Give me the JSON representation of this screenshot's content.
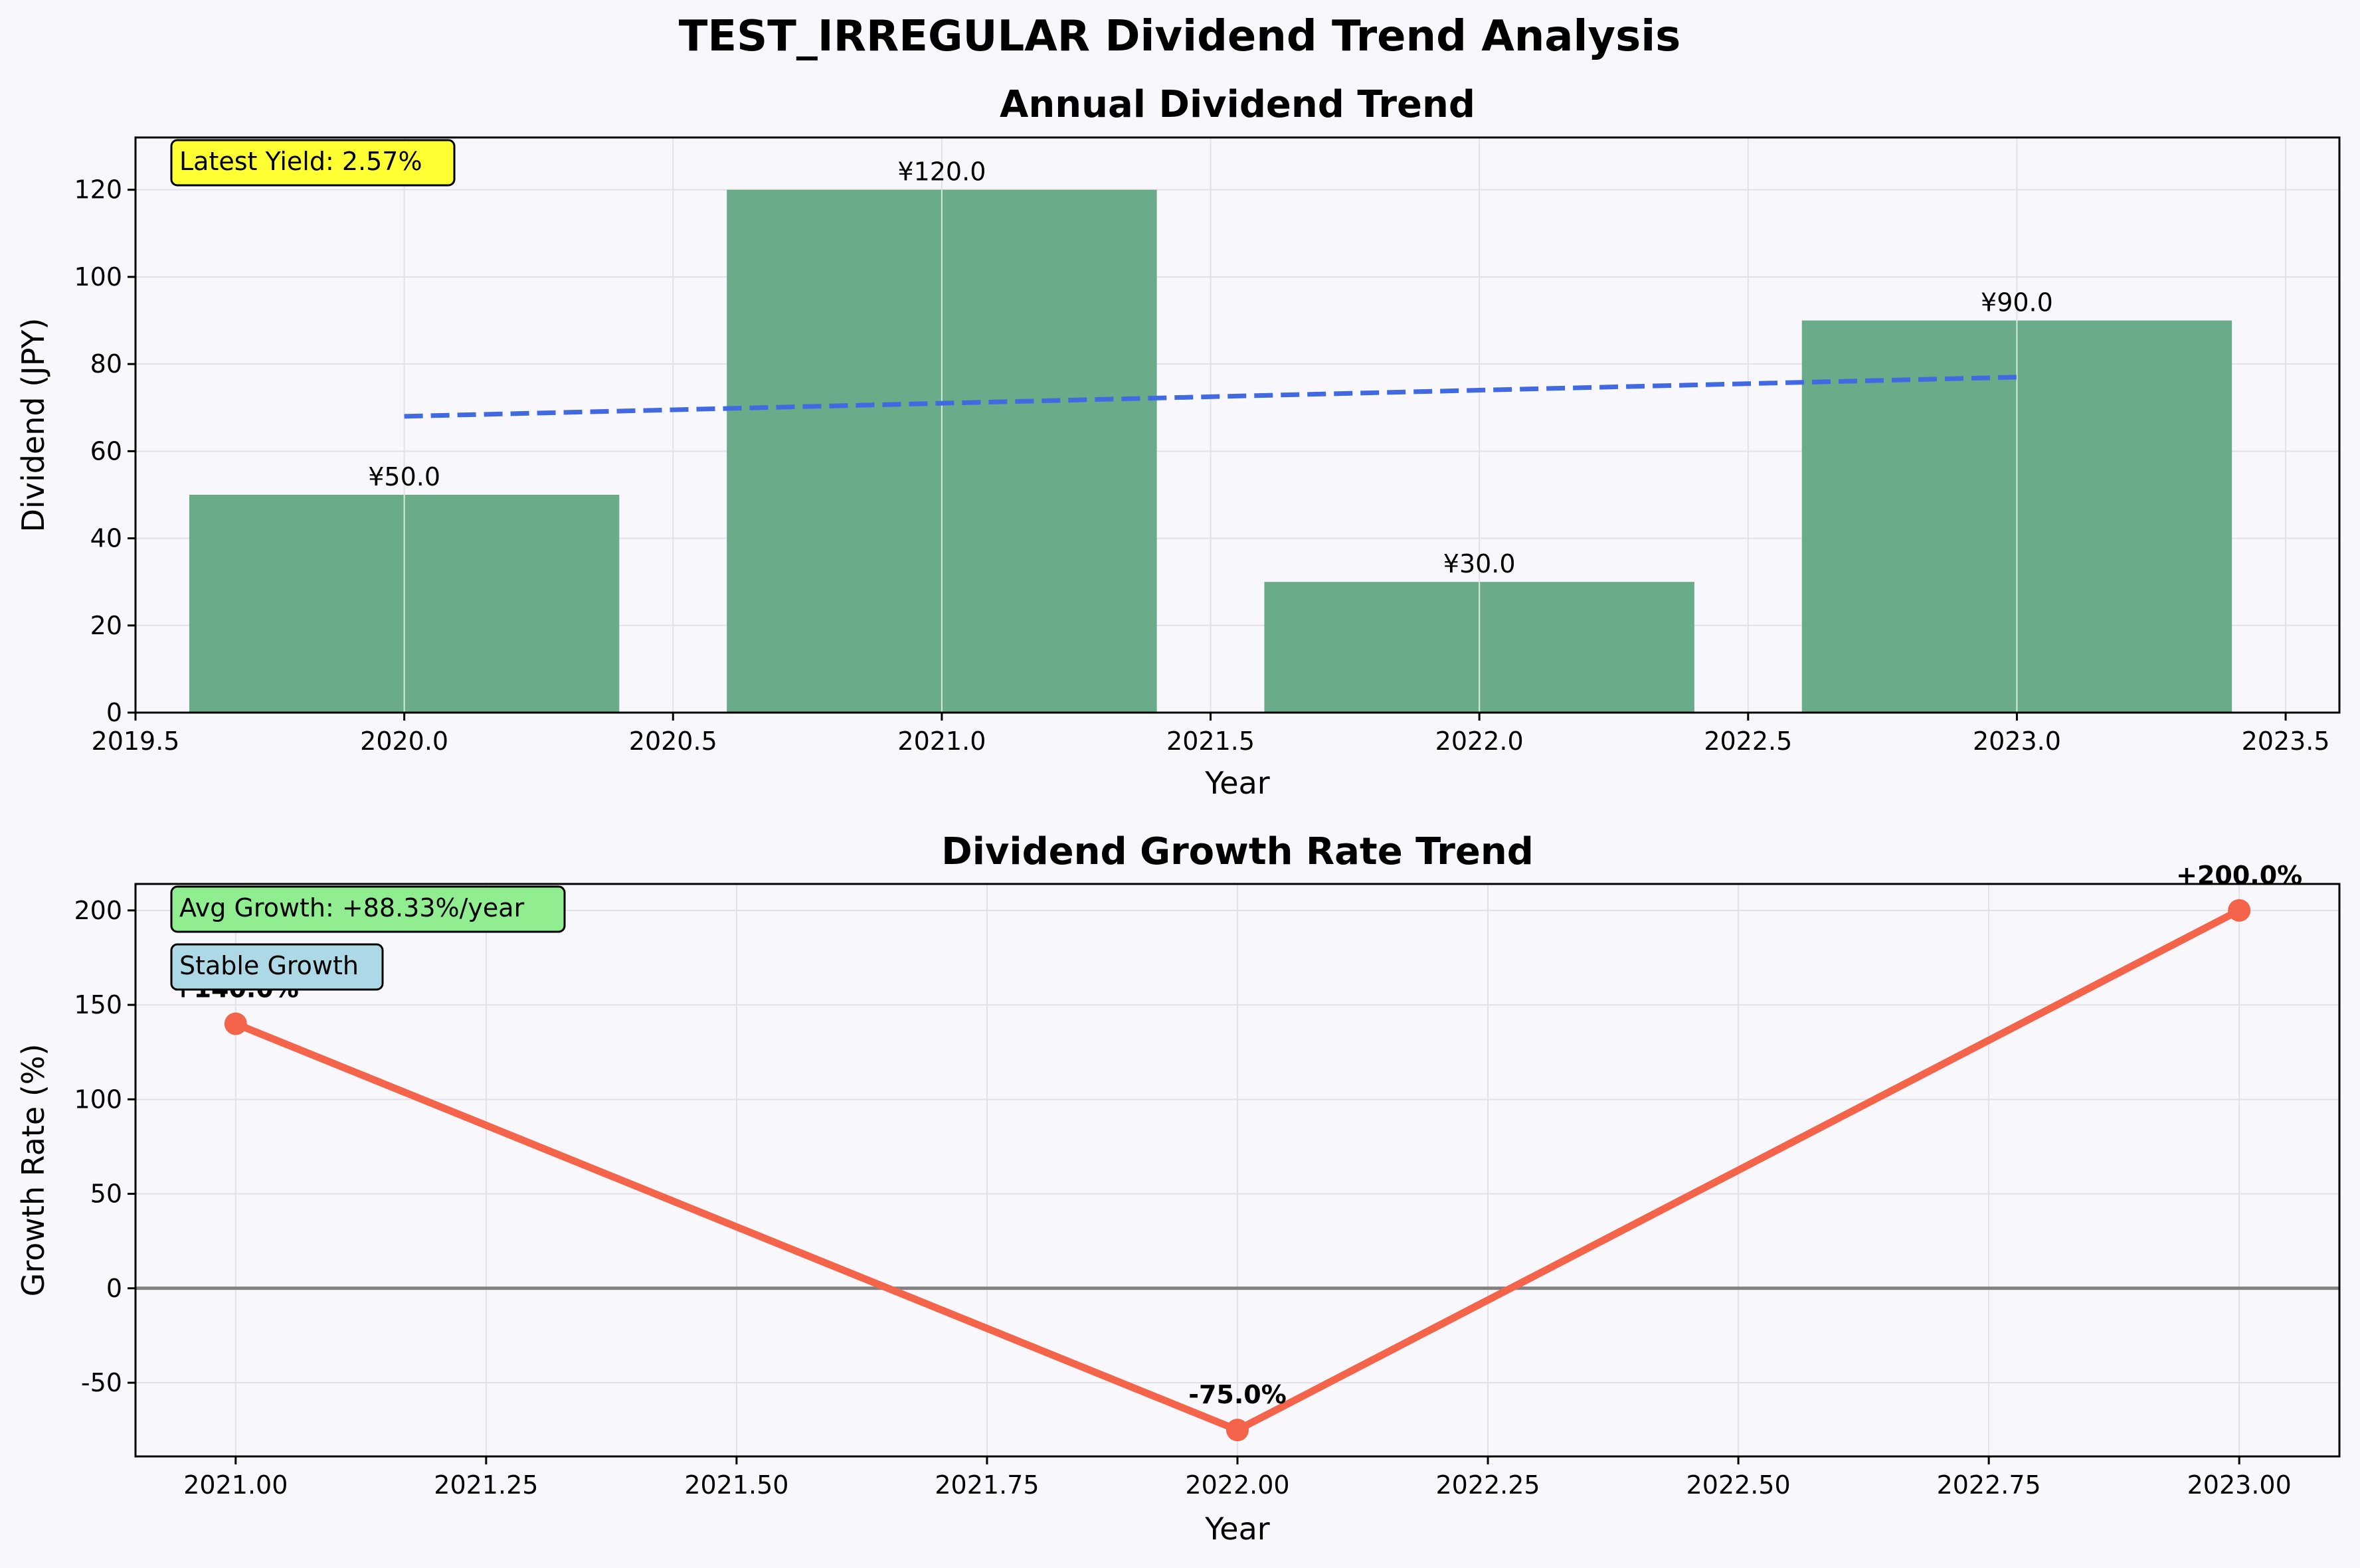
{
  "suptitle": "TEST_IRREGULAR Dividend Trend Analysis",
  "colors": {
    "background": "#f8f8fc",
    "bar": "#6aab89",
    "trend": "#4169e1",
    "growth_line": "#f4644a",
    "zero_line": "#808080",
    "yield_box": "#ffff33",
    "growth_box": "#90ee90",
    "status_box": "#add8e6"
  },
  "chart_data": [
    {
      "type": "bar",
      "title": "Annual Dividend Trend",
      "xlabel": "Year",
      "ylabel": "Dividend (JPY)",
      "x": [
        2020,
        2021,
        2022,
        2023
      ],
      "values": [
        50.0,
        120.0,
        30.0,
        90.0
      ],
      "value_labels": [
        "¥50.0",
        "¥120.0",
        "¥30.0",
        "¥90.0"
      ],
      "bar_width": 0.8,
      "trend_line": {
        "x": [
          2020,
          2023
        ],
        "y": [
          68.0,
          77.0
        ],
        "style": "dashed"
      },
      "xlim": [
        2019.5,
        2023.6
      ],
      "ylim": [
        0,
        132
      ],
      "xticks": [
        "2019.5",
        "2020.0",
        "2020.5",
        "2021.0",
        "2021.5",
        "2022.0",
        "2022.5",
        "2023.0",
        "2023.5"
      ],
      "yticks": [
        "0",
        "20",
        "40",
        "60",
        "80",
        "100",
        "120"
      ],
      "annotation": "Latest Yield: 2.57%",
      "grid": true
    },
    {
      "type": "line",
      "title": "Dividend Growth Rate Trend",
      "xlabel": "Year",
      "ylabel": "Growth Rate (%)",
      "x": [
        2021,
        2022,
        2023
      ],
      "values": [
        140.0,
        -75.0,
        200.0
      ],
      "point_labels": [
        "+140.0%",
        "-75.0%",
        "+200.0%"
      ],
      "xlim": [
        2020.9,
        2023.1
      ],
      "ylim": [
        -89,
        214
      ],
      "xticks": [
        "2021.00",
        "2021.25",
        "2021.50",
        "2021.75",
        "2022.00",
        "2022.25",
        "2022.50",
        "2022.75",
        "2023.00"
      ],
      "yticks": [
        "-50",
        "0",
        "50",
        "100",
        "150",
        "200"
      ],
      "zero_line": 0,
      "annotations": [
        "Avg Growth: +88.33%/year",
        "Stable Growth"
      ],
      "grid": true
    }
  ]
}
